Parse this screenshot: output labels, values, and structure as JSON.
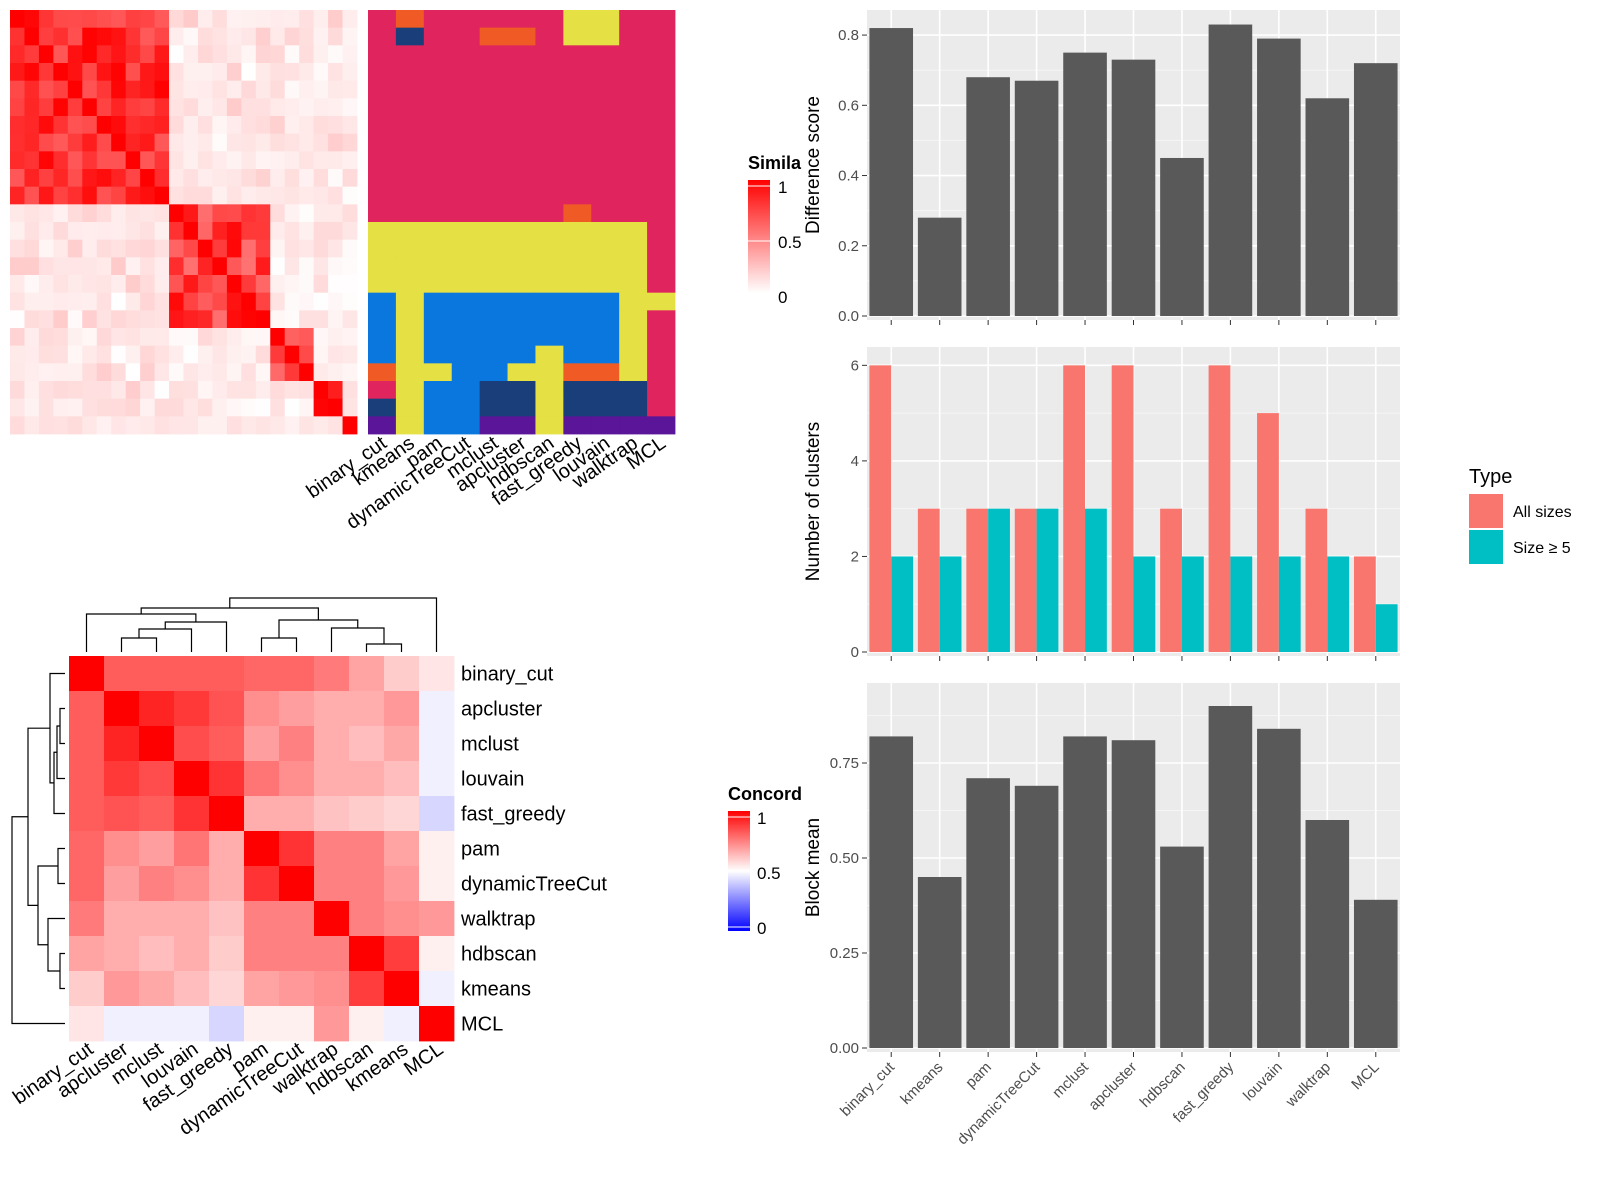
{
  "methods": [
    "binary_cut",
    "kmeans",
    "pam",
    "dynamicTreeCut",
    "mclust",
    "apcluster",
    "hdbscan",
    "fast_greedy",
    "louvain",
    "walktrap",
    "MCL"
  ],
  "heatmap_order": [
    "binary_cut",
    "apcluster",
    "mclust",
    "louvain",
    "fast_greedy",
    "pam",
    "dynamicTreeCut",
    "walktrap",
    "hdbscan",
    "kmeans",
    "MCL"
  ],
  "legends": {
    "similarity": {
      "title": "Simila",
      "ticks": [
        "1",
        "0.5",
        "0"
      ],
      "colors": [
        "#ff0000",
        "#ffffff"
      ]
    },
    "concordance": {
      "title": "Concord",
      "ticks": [
        "1",
        "0.5",
        "0"
      ],
      "colors": [
        "#ff0000",
        "#ffffff",
        "#0000ff"
      ]
    },
    "type": {
      "title": "Type",
      "items": [
        {
          "label": "All sizes",
          "color": "#f8766d"
        },
        {
          "label": "Size ≥ 5",
          "color": "#00bfc4"
        }
      ]
    }
  },
  "cluster_colors": {
    "1": "#e0245e",
    "2": "#e5e044",
    "3": "#0a77de",
    "4": "#f05a24",
    "5": "#1a3e7a",
    "6": "#5b1598"
  },
  "chart_data": [
    {
      "type": "bar",
      "ylabel": "Difference score",
      "xlabel": "",
      "categories": [
        "binary_cut",
        "kmeans",
        "pam",
        "dynamicTreeCut",
        "mclust",
        "apcluster",
        "hdbscan",
        "fast_greedy",
        "louvain",
        "walktrap",
        "MCL"
      ],
      "values": [
        0.82,
        0.28,
        0.68,
        0.67,
        0.75,
        0.73,
        0.45,
        0.83,
        0.79,
        0.62,
        0.72
      ],
      "ylim": [
        0,
        0.86
      ],
      "yticks": [
        "0.0",
        "0.2",
        "0.4",
        "0.6",
        "0.8"
      ],
      "grid": true
    },
    {
      "type": "bar",
      "ylabel": "Number of clusters",
      "xlabel": "",
      "categories": [
        "binary_cut",
        "kmeans",
        "pam",
        "dynamicTreeCut",
        "mclust",
        "apcluster",
        "hdbscan",
        "fast_greedy",
        "louvain",
        "walktrap",
        "MCL"
      ],
      "series": [
        {
          "name": "All sizes",
          "values": [
            6,
            3,
            3,
            3,
            6,
            6,
            3,
            6,
            5,
            3,
            2
          ]
        },
        {
          "name": "Size ≥ 5",
          "values": [
            2,
            2,
            3,
            3,
            3,
            2,
            2,
            2,
            2,
            2,
            1
          ]
        }
      ],
      "ylim": [
        0,
        6.3
      ],
      "yticks": [
        "0",
        "2",
        "4",
        "6"
      ],
      "legend": "right",
      "grid": true
    },
    {
      "type": "bar",
      "ylabel": "Block mean",
      "xlabel": "",
      "categories": [
        "binary_cut",
        "kmeans",
        "pam",
        "dynamicTreeCut",
        "mclust",
        "apcluster",
        "hdbscan",
        "fast_greedy",
        "louvain",
        "walktrap",
        "MCL"
      ],
      "values": [
        0.82,
        0.45,
        0.71,
        0.69,
        0.82,
        0.81,
        0.53,
        0.9,
        0.84,
        0.6,
        0.39
      ],
      "ylim": [
        0,
        0.95
      ],
      "yticks": [
        "0.00",
        "0.25",
        "0.50",
        "0.75"
      ],
      "grid": true
    },
    {
      "type": "heatmap",
      "title": "",
      "rows": [
        "binary_cut",
        "apcluster",
        "mclust",
        "louvain",
        "fast_greedy",
        "pam",
        "dynamicTreeCut",
        "walktrap",
        "hdbscan",
        "kmeans",
        "MCL"
      ],
      "columns": [
        "binary_cut",
        "apcluster",
        "mclust",
        "louvain",
        "fast_greedy",
        "pam",
        "dynamicTreeCut",
        "walktrap",
        "hdbscan",
        "kmeans",
        "MCL"
      ],
      "values": [
        [
          1.0,
          0.82,
          0.82,
          0.82,
          0.82,
          0.8,
          0.8,
          0.76,
          0.68,
          0.6,
          0.55
        ],
        [
          0.82,
          1.0,
          0.93,
          0.89,
          0.84,
          0.72,
          0.69,
          0.66,
          0.66,
          0.7,
          0.47
        ],
        [
          0.82,
          0.93,
          1.0,
          0.85,
          0.82,
          0.69,
          0.75,
          0.66,
          0.63,
          0.67,
          0.47
        ],
        [
          0.82,
          0.89,
          0.85,
          1.0,
          0.9,
          0.77,
          0.72,
          0.66,
          0.66,
          0.63,
          0.47
        ],
        [
          0.82,
          0.84,
          0.82,
          0.9,
          1.0,
          0.66,
          0.66,
          0.62,
          0.6,
          0.58,
          0.42
        ],
        [
          0.8,
          0.72,
          0.69,
          0.77,
          0.66,
          1.0,
          0.9,
          0.75,
          0.75,
          0.68,
          0.53
        ],
        [
          0.8,
          0.69,
          0.75,
          0.72,
          0.66,
          0.9,
          1.0,
          0.75,
          0.75,
          0.7,
          0.53
        ],
        [
          0.76,
          0.66,
          0.66,
          0.66,
          0.62,
          0.75,
          0.75,
          1.0,
          0.75,
          0.72,
          0.7
        ],
        [
          0.68,
          0.66,
          0.63,
          0.66,
          0.6,
          0.75,
          0.75,
          0.75,
          1.0,
          0.88,
          0.53
        ],
        [
          0.6,
          0.7,
          0.67,
          0.63,
          0.58,
          0.68,
          0.7,
          0.72,
          0.88,
          1.0,
          0.47
        ],
        [
          0.55,
          0.47,
          0.47,
          0.47,
          0.42,
          0.53,
          0.53,
          0.7,
          0.53,
          0.47,
          1.0
        ]
      ],
      "legend": "right"
    }
  ]
}
